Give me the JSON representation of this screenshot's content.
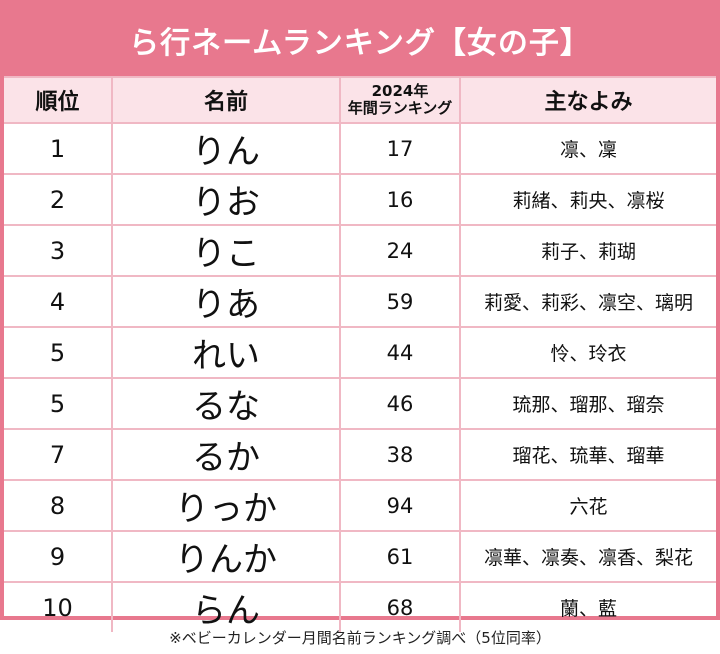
{
  "title": "ら行ネームランキング【女の子】",
  "headers": {
    "rank": "順位",
    "name": "名前",
    "annual_line1": "2024年",
    "annual_line2": "年間ランキング",
    "kanji": "主なよみ"
  },
  "rows": [
    {
      "rank": "1",
      "name": "りん",
      "annual": "17",
      "kanji": "凛、凜"
    },
    {
      "rank": "2",
      "name": "りお",
      "annual": "16",
      "kanji": "莉緒、莉央、凛桜"
    },
    {
      "rank": "3",
      "name": "りこ",
      "annual": "24",
      "kanji": "莉子、莉瑚"
    },
    {
      "rank": "4",
      "name": "りあ",
      "annual": "59",
      "kanji": "莉愛、莉彩、凛空、璃明"
    },
    {
      "rank": "5",
      "name": "れい",
      "annual": "44",
      "kanji": "怜、玲衣"
    },
    {
      "rank": "5",
      "name": "るな",
      "annual": "46",
      "kanji": "琉那、瑠那、瑠奈"
    },
    {
      "rank": "7",
      "name": "るか",
      "annual": "38",
      "kanji": "瑠花、琉華、瑠華"
    },
    {
      "rank": "8",
      "name": "りっか",
      "annual": "94",
      "kanji": "六花"
    },
    {
      "rank": "9",
      "name": "りんか",
      "annual": "61",
      "kanji": "凛華、凛奏、凛香、梨花"
    },
    {
      "rank": "10",
      "name": "らん",
      "annual": "68",
      "kanji": "蘭、藍"
    }
  ],
  "footer": "※ベビーカレンダー月間名前ランキング調べ（5位同率）"
}
